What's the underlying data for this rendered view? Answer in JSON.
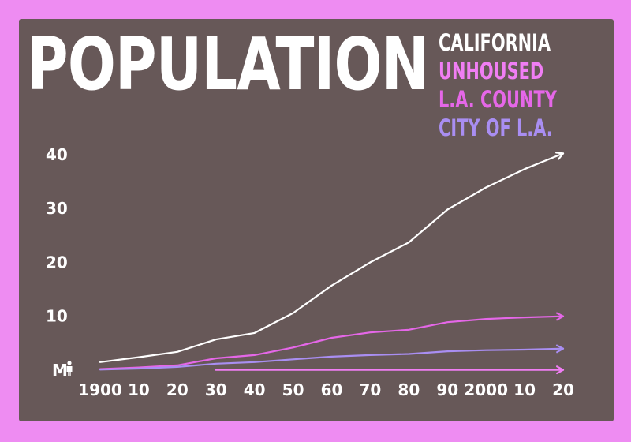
{
  "colors": {
    "background": "#ee8cf2",
    "panel": "#675858",
    "california": "#ffffff",
    "unhoused": "#f07ef4",
    "la_county": "#e567e8",
    "city_of_la": "#a98ef2"
  },
  "chart_data": {
    "type": "line",
    "title": "POPULATION",
    "xlabel": "",
    "ylabel": "",
    "unit_label": "M",
    "unit_icon": "person-icon",
    "x": [
      1900,
      1910,
      1920,
      1930,
      1940,
      1950,
      1960,
      1970,
      1980,
      1990,
      2000,
      2010,
      2020
    ],
    "x_tick_labels": [
      "1900",
      "10",
      "20",
      "30",
      "40",
      "50",
      "60",
      "70",
      "80",
      "90",
      "2000",
      "10",
      "20"
    ],
    "y_ticks": [
      10,
      20,
      30,
      40
    ],
    "ylim": [
      0,
      43
    ],
    "grid": false,
    "legend_position": "top-right",
    "series": [
      {
        "name": "CALIFORNIA",
        "color": "#ffffff",
        "x": [
          1900,
          1910,
          1920,
          1930,
          1940,
          1950,
          1960,
          1970,
          1980,
          1990,
          2000,
          2010,
          2020
        ],
        "values": [
          1.5,
          2.4,
          3.4,
          5.7,
          6.9,
          10.6,
          15.7,
          20.0,
          23.7,
          29.8,
          33.9,
          37.3,
          40.2
        ]
      },
      {
        "name": "L.A. COUNTY",
        "color": "#e567e8",
        "x": [
          1900,
          1910,
          1920,
          1930,
          1940,
          1950,
          1960,
          1970,
          1980,
          1990,
          2000,
          2010,
          2020
        ],
        "values": [
          0.2,
          0.5,
          0.9,
          2.2,
          2.8,
          4.2,
          6.0,
          7.0,
          7.5,
          8.9,
          9.5,
          9.8,
          10.0
        ]
      },
      {
        "name": "CITY OF L.A.",
        "color": "#a98ef2",
        "x": [
          1900,
          1910,
          1920,
          1930,
          1940,
          1950,
          1960,
          1970,
          1980,
          1990,
          2000,
          2010,
          2020
        ],
        "values": [
          0.1,
          0.3,
          0.6,
          1.2,
          1.5,
          2.0,
          2.5,
          2.8,
          3.0,
          3.5,
          3.7,
          3.8,
          4.0
        ]
      },
      {
        "name": "UNHOUSED",
        "color": "#f07ef4",
        "x": [
          1930,
          2020
        ],
        "values": [
          0.05,
          0.05
        ]
      }
    ]
  }
}
